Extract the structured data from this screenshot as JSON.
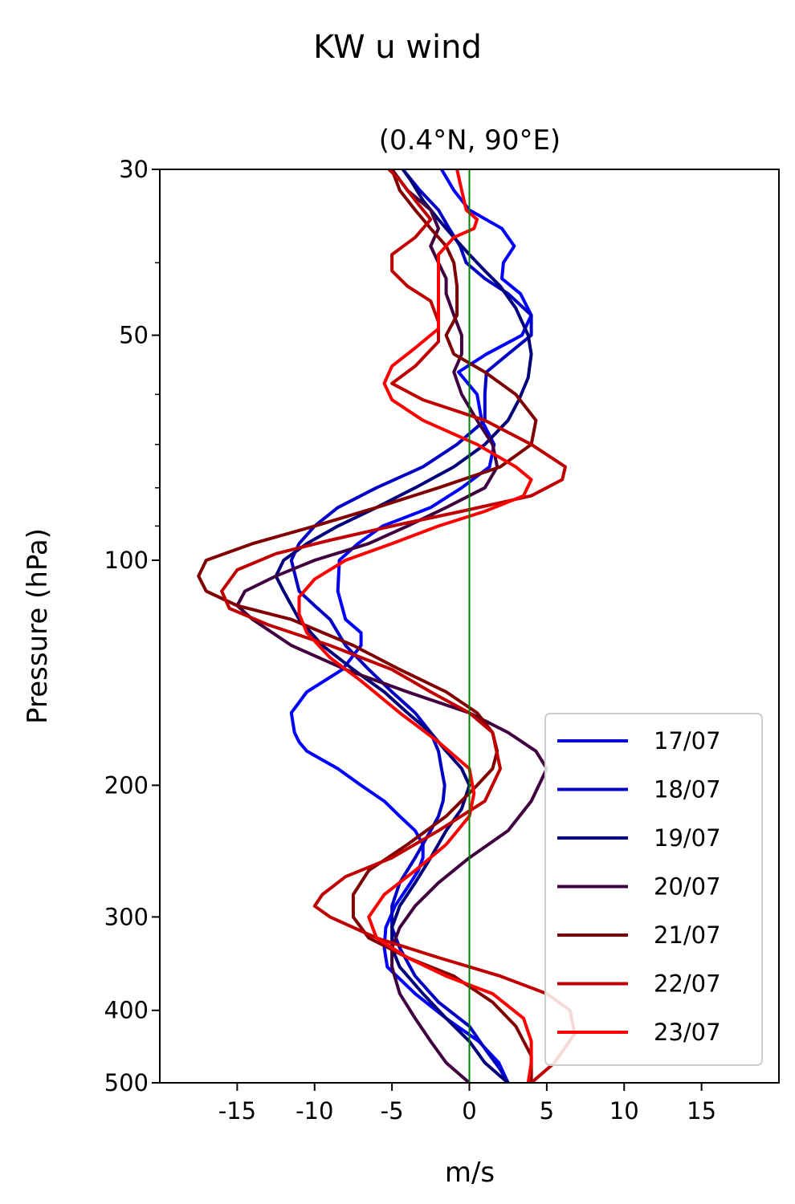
{
  "chart_data": {
    "type": "line",
    "title": "KW u wind",
    "subtitle": "(0.4°N, 90°E)",
    "xlabel": "m/s",
    "ylabel": "Pressure (hPa)",
    "xlim": [
      -20,
      20
    ],
    "ylim": [
      500,
      30
    ],
    "y_scale": "log",
    "x_ticks": [
      -15,
      -10,
      -5,
      0,
      5,
      10,
      15
    ],
    "x_tick_labels": [
      "-15",
      "-10",
      "-5",
      "0",
      "5",
      "10",
      "15"
    ],
    "y_ticks": [
      30,
      50,
      100,
      200,
      300,
      400,
      500
    ],
    "y_tick_labels": [
      "30",
      "50",
      "100",
      "200",
      "300",
      "400",
      "500"
    ],
    "y_minor_ticks": [
      40,
      60,
      70,
      80,
      90
    ],
    "zero_line": {
      "x": 0,
      "color": "#008000"
    },
    "legend_position": "lower-right",
    "grid": false,
    "series": [
      {
        "name": "17/07",
        "color": "#0000ff",
        "x": [
          -1.8,
          -1.0,
          0.0,
          2.1,
          2.9,
          2.2,
          2.1,
          3.3,
          4.0,
          3.4,
          1.1,
          -0.7,
          0.5,
          0.8,
          1.6,
          1.3,
          -0.5,
          -2.5,
          -5.6,
          -7.2,
          -8.4,
          -8.5,
          -8.0,
          -7.0,
          -7.0,
          -8.2,
          -10.5,
          -11.5,
          -11.3,
          -11.0,
          -10.5,
          -9.5,
          -8.5,
          -7.0,
          -5.5,
          -4.5,
          -3.5,
          -3.0,
          -3.0,
          -3.3,
          -3.8,
          -4.8,
          -5.4,
          -5.5,
          -5.3,
          -3.5,
          -1.5,
          0.6,
          1.9,
          2.5
        ],
        "y": [
          30,
          32,
          34,
          36,
          38,
          40,
          42,
          44,
          47,
          50,
          53,
          56,
          60,
          65,
          70,
          75,
          80,
          85,
          90,
          95,
          100,
          110,
          120,
          125,
          130,
          140,
          150,
          160,
          170,
          175,
          180,
          185,
          190,
          200,
          210,
          220,
          230,
          240,
          250,
          260,
          270,
          290,
          310,
          330,
          350,
          380,
          410,
          440,
          470,
          500
        ]
      },
      {
        "name": "18/07",
        "color": "#0000c4",
        "x": [
          -4.3,
          -3.2,
          -2.0,
          -1.3,
          -0.6,
          -0.2,
          1.0,
          2.5,
          4.0,
          4.0,
          2.5,
          1.1,
          1.0,
          1.0,
          -0.8,
          -3.0,
          -6.0,
          -8.5,
          -10.0,
          -11.0,
          -11.5,
          -11.0,
          -10.0,
          -9.0,
          -8.0,
          -6.5,
          -5.0,
          -3.5,
          -2.5,
          -2.0,
          -1.8,
          -1.6,
          -1.7,
          -2.0,
          -2.5,
          -3.5,
          -4.5,
          -5.0,
          -5.0,
          -4.5,
          -3.5,
          -2.0,
          0.0,
          1.0,
          2.0,
          2.5
        ],
        "y": [
          30,
          32,
          34,
          36,
          38,
          40,
          42,
          44,
          47,
          50,
          53,
          56,
          60,
          65,
          70,
          75,
          80,
          85,
          90,
          95,
          100,
          110,
          115,
          120,
          130,
          140,
          150,
          160,
          170,
          180,
          190,
          200,
          210,
          220,
          230,
          250,
          270,
          290,
          310,
          330,
          360,
          390,
          420,
          450,
          480,
          500
        ]
      },
      {
        "name": "19/07",
        "color": "#00007a",
        "x": [
          -4.3,
          -3.8,
          -3.0,
          -2.0,
          -1.0,
          0.0,
          1.0,
          2.0,
          3.0,
          3.8,
          4.0,
          3.8,
          3.2,
          2.5,
          1.0,
          -1.0,
          -3.5,
          -6.0,
          -8.5,
          -10.5,
          -12.0,
          -12.5,
          -12.0,
          -11.0,
          -9.5,
          -7.5,
          -5.5,
          -4.0,
          -2.5,
          -1.5,
          -0.5,
          0.0,
          -0.5,
          -1.5,
          -2.5,
          -3.5,
          -4.5,
          -5.0,
          -5.0,
          -4.5,
          -3.0,
          -1.5,
          0.0,
          1.0,
          2.0,
          2.5
        ],
        "y": [
          30,
          31,
          33,
          35,
          37,
          39,
          41,
          43,
          46,
          50,
          53,
          57,
          61,
          65,
          70,
          75,
          80,
          85,
          90,
          95,
          100,
          105,
          110,
          120,
          130,
          140,
          150,
          160,
          170,
          180,
          190,
          200,
          215,
          230,
          250,
          270,
          290,
          310,
          330,
          350,
          380,
          410,
          440,
          470,
          490,
          500
        ]
      },
      {
        "name": "20/07",
        "color": "#400040",
        "x": [
          -5.0,
          -4.0,
          -2.5,
          -2.0,
          -2.5,
          -2.0,
          -1.5,
          -1.5,
          -1.0,
          -0.5,
          -0.5,
          -1.0,
          -0.5,
          0.5,
          1.5,
          1.8,
          1.0,
          -1.5,
          -4.0,
          -6.5,
          -10.0,
          -12.5,
          -14.5,
          -15.0,
          -14.0,
          -11.5,
          -8.0,
          -4.0,
          0.0,
          2.5,
          4.3,
          5.0,
          4.0,
          2.5,
          0.0,
          -2.0,
          -3.5,
          -4.5,
          -5.0,
          -5.0,
          -4.5,
          -3.5,
          -2.5,
          -1.5,
          -0.5,
          0.0
        ],
        "y": [
          30,
          32,
          34,
          36,
          38,
          40,
          42,
          44,
          47,
          50,
          53,
          56,
          60,
          65,
          70,
          75,
          80,
          85,
          90,
          95,
          100,
          105,
          110,
          115,
          120,
          130,
          140,
          150,
          160,
          170,
          180,
          190,
          210,
          230,
          250,
          270,
          290,
          310,
          330,
          350,
          380,
          410,
          440,
          470,
          490,
          500
        ]
      },
      {
        "name": "21/07",
        "color": "#800000",
        "x": [
          -5.0,
          -4.5,
          -3.5,
          -2.5,
          -1.5,
          -1.0,
          -0.8,
          -0.8,
          -1.5,
          -1.0,
          1.0,
          3.0,
          4.3,
          4.0,
          2.0,
          -2.0,
          -6.0,
          -10.0,
          -14.0,
          -17.0,
          -17.5,
          -17.0,
          -15.0,
          -11.5,
          -7.5,
          -4.5,
          -1.5,
          0.5,
          1.5,
          1.8,
          1.5,
          0.5,
          -1.5,
          -4.0,
          -6.5,
          -7.5,
          -7.5,
          -6.5,
          -4.0,
          -1.0,
          1.5,
          3.0,
          4.0,
          4.0
        ],
        "y": [
          30,
          32,
          34,
          36,
          38,
          40,
          43,
          47,
          50,
          53,
          56,
          60,
          65,
          70,
          75,
          80,
          85,
          90,
          95,
          100,
          105,
          110,
          115,
          120,
          130,
          140,
          150,
          160,
          170,
          180,
          190,
          200,
          220,
          240,
          260,
          280,
          300,
          320,
          340,
          360,
          390,
          420,
          460,
          500
        ]
      },
      {
        "name": "22/07",
        "color": "#c00000",
        "x": [
          -5.2,
          -4.5,
          -3.5,
          -2.5,
          -3.5,
          -5.0,
          -5.0,
          -4.0,
          -2.5,
          -2.0,
          -2.0,
          -3.5,
          -5.0,
          -3.0,
          1.0,
          4.0,
          6.2,
          6.0,
          4.0,
          -0.5,
          -5.0,
          -9.0,
          -12.5,
          -15.0,
          -16.0,
          -15.5,
          -13.0,
          -9.0,
          -5.0,
          -2.5,
          0.0,
          1.5,
          2.0,
          1.0,
          -2.0,
          -5.0,
          -8.0,
          -9.5,
          -10.0,
          -9.0,
          -6.0,
          -2.0,
          2.0,
          5.0,
          6.5,
          6.8,
          5.5,
          4.0
        ],
        "y": [
          30,
          31,
          33,
          35,
          37,
          39,
          41,
          43,
          45,
          48,
          51,
          55,
          58,
          61,
          65,
          70,
          75,
          78,
          82,
          86,
          90,
          94,
          98,
          103,
          110,
          116,
          122,
          130,
          140,
          150,
          160,
          170,
          190,
          210,
          230,
          250,
          265,
          280,
          290,
          300,
          320,
          340,
          360,
          380,
          400,
          430,
          470,
          500
        ]
      },
      {
        "name": "23/07",
        "color": "#ff0000",
        "x": [
          -0.8,
          -0.5,
          -0.2,
          0.5,
          0.3,
          -1.0,
          -2.0,
          -2.0,
          -2.0,
          -2.0,
          -3.5,
          -5.0,
          -5.5,
          -5.0,
          -3.0,
          0.5,
          3.0,
          4.0,
          3.5,
          1.0,
          -2.0,
          -5.0,
          -8.0,
          -10.0,
          -11.0,
          -11.0,
          -10.5,
          -9.0,
          -7.0,
          -4.5,
          -2.0,
          0.0,
          0.3,
          0.0,
          -1.5,
          -3.5,
          -5.5,
          -6.5,
          -6.0,
          -4.0,
          -1.5,
          1.5,
          3.5,
          4.0,
          4.0,
          3.8
        ],
        "y": [
          30,
          32,
          34,
          35,
          36,
          37,
          39,
          42,
          45,
          49,
          52,
          55,
          58,
          61,
          65,
          70,
          75,
          78,
          82,
          86,
          90,
          95,
          100,
          106,
          112,
          118,
          125,
          135,
          145,
          160,
          175,
          190,
          205,
          220,
          240,
          260,
          280,
          300,
          320,
          340,
          360,
          380,
          410,
          440,
          470,
          500
        ]
      }
    ]
  }
}
